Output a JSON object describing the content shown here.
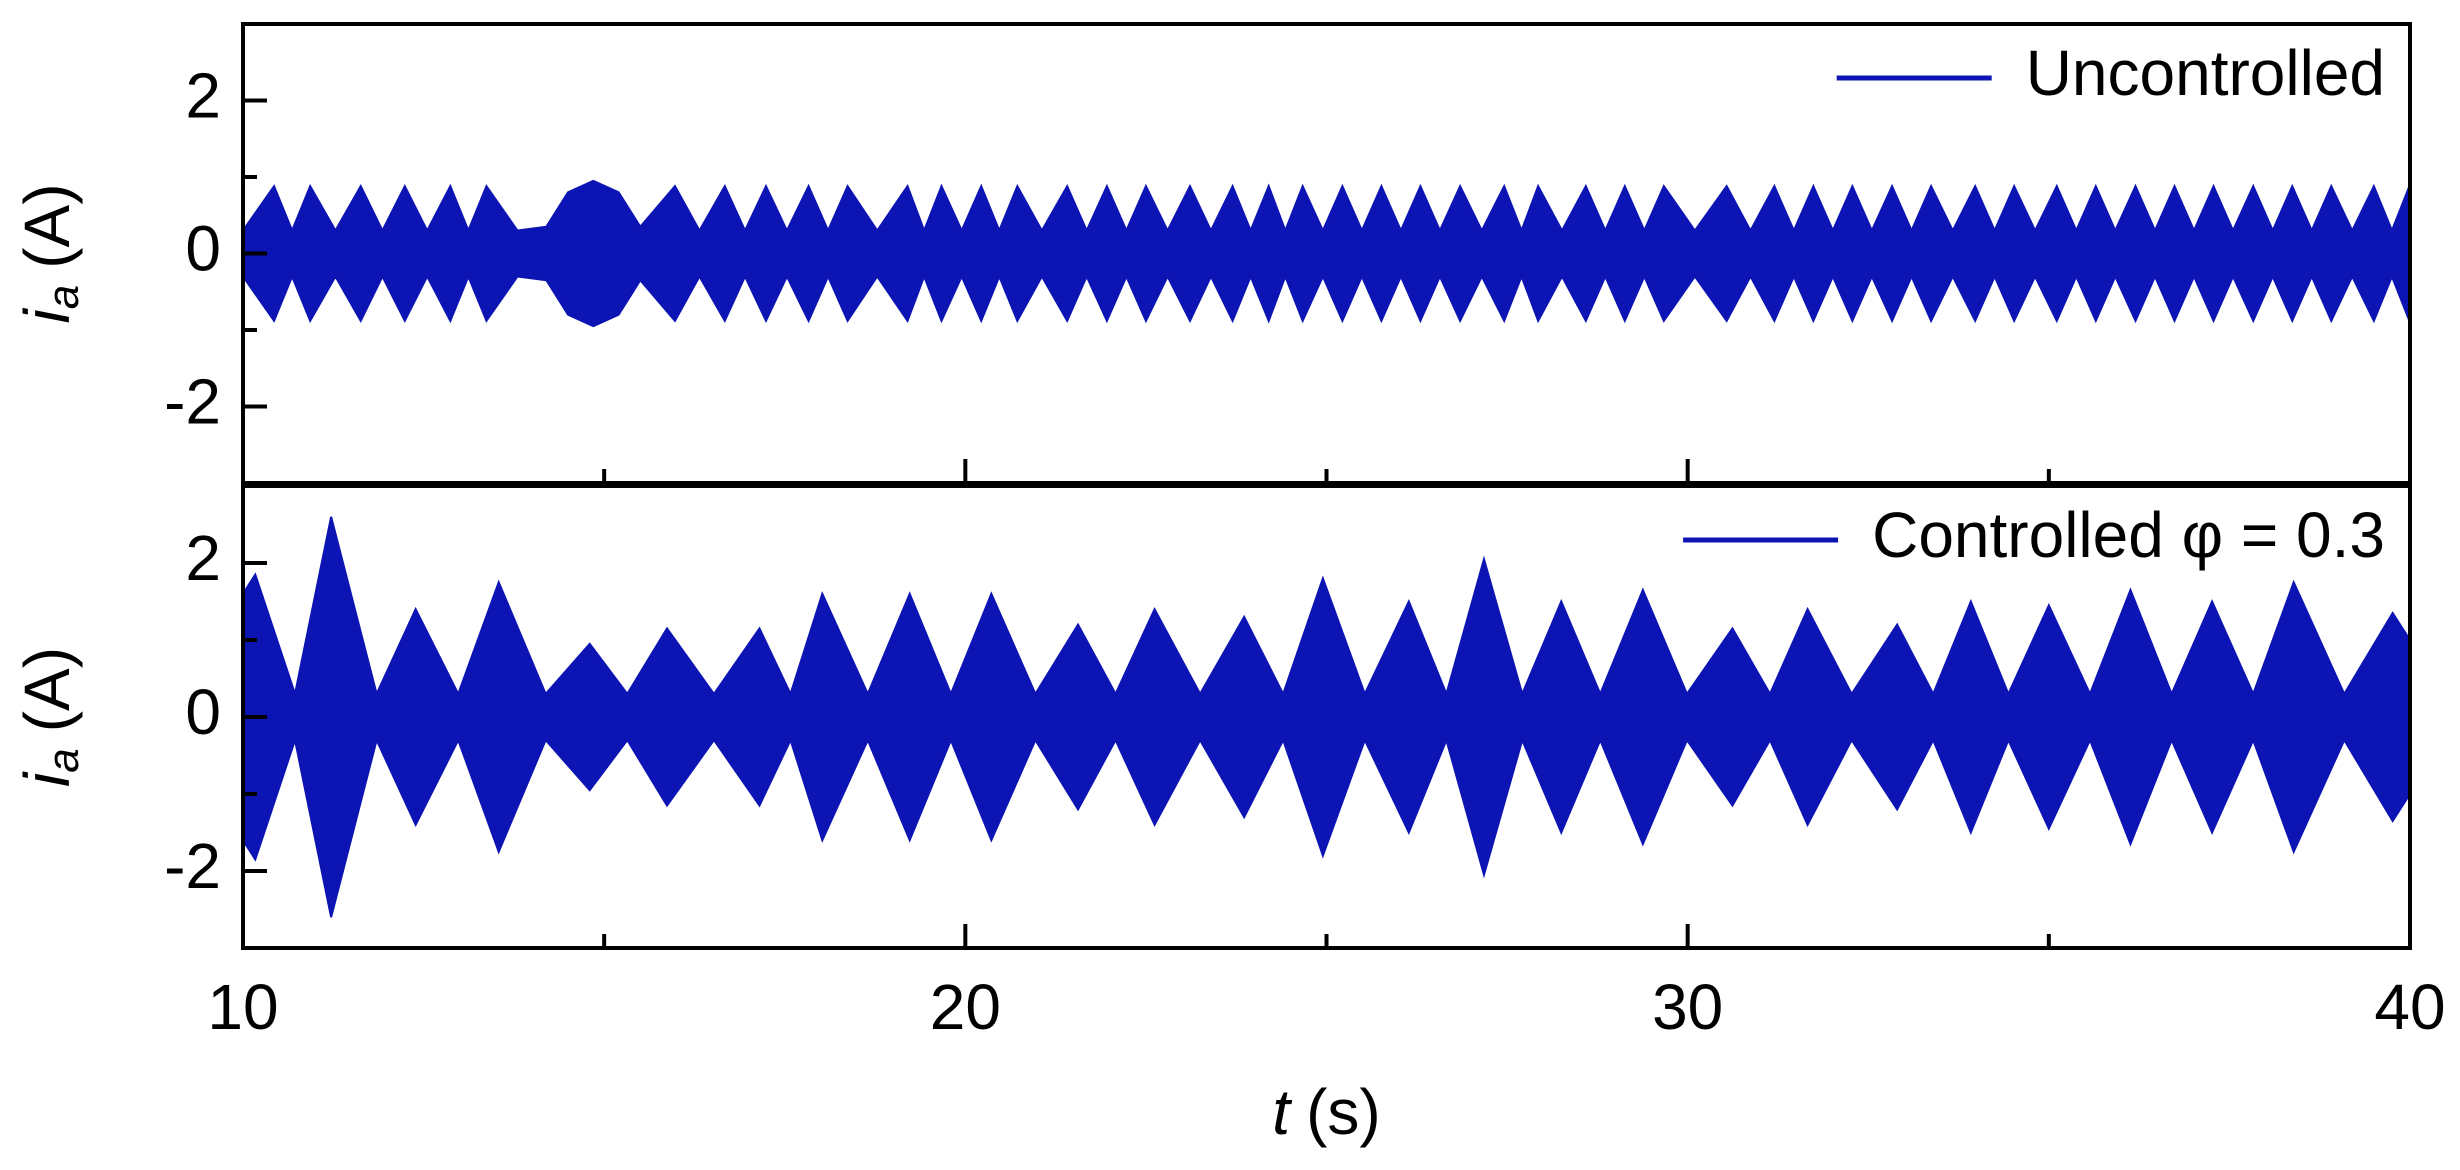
{
  "chart_data": [
    {
      "type": "envelope",
      "series": [
        {
          "name": "Uncontrolled",
          "color": "#0d14b4",
          "x": [
            10.0,
            10.43,
            10.68,
            10.93,
            11.28,
            11.63,
            11.93,
            12.24,
            12.55,
            12.87,
            13.12,
            13.37,
            13.8,
            14.2,
            14.5,
            14.85,
            15.2,
            15.5,
            15.98,
            16.32,
            16.67,
            16.95,
            17.24,
            17.53,
            17.83,
            18.1,
            18.37,
            18.78,
            19.2,
            19.43,
            19.67,
            19.95,
            20.22,
            20.47,
            20.72,
            21.06,
            21.41,
            21.68,
            21.96,
            22.23,
            22.5,
            22.8,
            23.11,
            23.4,
            23.7,
            23.95,
            24.2,
            24.43,
            24.67,
            24.95,
            25.22,
            25.49,
            25.76,
            26.03,
            26.3,
            26.57,
            26.85,
            27.15,
            27.46,
            27.7,
            27.93,
            28.26,
            28.59,
            28.86,
            29.13,
            29.4,
            29.67,
            30.1,
            30.54,
            30.87,
            31.2,
            31.47,
            31.74,
            32.01,
            32.28,
            32.55,
            32.83,
            33.1,
            33.37,
            33.67,
            33.98,
            34.25,
            34.52,
            34.81,
            35.11,
            35.38,
            35.65,
            35.92,
            36.2,
            36.47,
            36.74,
            37.01,
            37.28,
            37.55,
            37.83,
            38.1,
            38.37,
            38.64,
            38.91,
            39.2,
            39.5,
            39.75,
            40.0
          ],
          "values": [
            0.3,
            0.88,
            0.3,
            0.88,
            0.3,
            0.88,
            0.3,
            0.88,
            0.3,
            0.88,
            0.3,
            0.88,
            0.3,
            0.35,
            0.8,
            0.95,
            0.8,
            0.35,
            0.88,
            0.3,
            0.88,
            0.3,
            0.88,
            0.3,
            0.88,
            0.3,
            0.88,
            0.3,
            0.88,
            0.3,
            0.88,
            0.3,
            0.88,
            0.3,
            0.88,
            0.3,
            0.88,
            0.3,
            0.88,
            0.3,
            0.88,
            0.3,
            0.88,
            0.3,
            0.88,
            0.3,
            0.88,
            0.3,
            0.88,
            0.3,
            0.88,
            0.3,
            0.88,
            0.3,
            0.88,
            0.3,
            0.88,
            0.3,
            0.88,
            0.3,
            0.88,
            0.3,
            0.88,
            0.3,
            0.88,
            0.3,
            0.88,
            0.3,
            0.88,
            0.3,
            0.88,
            0.3,
            0.88,
            0.3,
            0.88,
            0.3,
            0.88,
            0.3,
            0.88,
            0.3,
            0.88,
            0.3,
            0.88,
            0.3,
            0.88,
            0.3,
            0.88,
            0.3,
            0.88,
            0.3,
            0.88,
            0.3,
            0.88,
            0.3,
            0.88,
            0.3,
            0.88,
            0.3,
            0.88,
            0.3,
            0.88,
            0.3,
            0.9
          ]
        }
      ],
      "ylabel": "i",
      "ylabel_subscript": "a",
      "ylabel_unit": "(A)",
      "xlim": [
        10,
        40
      ],
      "xticks": [
        10,
        20,
        30,
        40
      ],
      "xminor": [
        15,
        25,
        35
      ],
      "xticklabels": false,
      "ylim": [
        -3,
        3
      ],
      "yticks": [
        -2,
        0,
        2
      ],
      "yminor": [
        -1,
        1
      ],
      "legend": "upper right"
    },
    {
      "type": "envelope",
      "series": [
        {
          "name": "Controlled φ = 0.3",
          "color": "#0d14b4",
          "x": [
            10.0,
            10.17,
            10.72,
            11.22,
            11.85,
            12.39,
            12.98,
            13.54,
            14.19,
            14.8,
            15.32,
            15.87,
            16.52,
            17.15,
            17.58,
            18.02,
            18.65,
            19.23,
            19.8,
            20.36,
            20.97,
            21.56,
            22.08,
            22.62,
            23.25,
            23.86,
            24.4,
            24.95,
            25.53,
            26.14,
            26.66,
            27.18,
            27.71,
            28.25,
            28.79,
            29.38,
            29.99,
            30.62,
            31.14,
            31.66,
            32.27,
            32.9,
            33.4,
            33.92,
            34.44,
            35.0,
            35.57,
            36.13,
            36.7,
            37.26,
            37.83,
            38.39,
            39.09,
            39.76,
            40.0
          ],
          "values": [
            1.6,
            1.85,
            0.3,
            2.6,
            0.3,
            1.4,
            0.3,
            1.75,
            0.3,
            0.95,
            0.3,
            1.15,
            0.3,
            1.15,
            0.3,
            1.6,
            0.3,
            1.6,
            0.3,
            1.6,
            0.3,
            1.2,
            0.3,
            1.4,
            0.3,
            1.3,
            0.3,
            1.8,
            0.3,
            1.5,
            0.3,
            2.05,
            0.3,
            1.5,
            0.3,
            1.65,
            0.3,
            1.15,
            0.3,
            1.4,
            0.3,
            1.2,
            0.3,
            1.5,
            0.3,
            1.45,
            0.3,
            1.65,
            0.3,
            1.5,
            0.3,
            1.75,
            0.3,
            1.35,
            1.0
          ]
        }
      ],
      "ylabel": "i",
      "ylabel_subscript": "a",
      "ylabel_unit": "(A)",
      "xlabel": "t",
      "xlabel_unit": "(s)",
      "xlim": [
        10,
        40
      ],
      "xticks": [
        10,
        20,
        30,
        40
      ],
      "xminor": [
        15,
        25,
        35
      ],
      "xticklabels": true,
      "ylim": [
        -3,
        3
      ],
      "yticks": [
        -2,
        0,
        2
      ],
      "yminor": [
        -1,
        1
      ],
      "legend": "upper right"
    }
  ]
}
